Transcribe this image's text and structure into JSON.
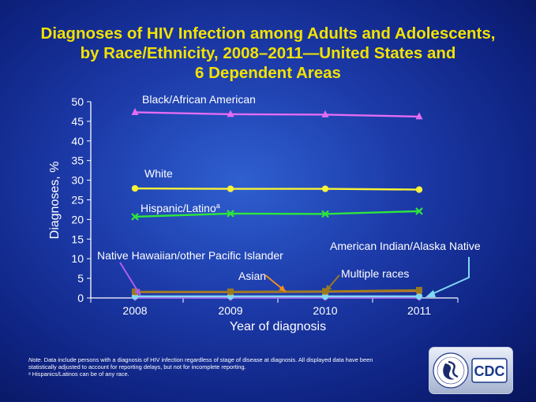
{
  "title_lines": [
    "Diagnoses of HIV Infection among Adults and Adolescents,",
    "by Race/Ethnicity, 2008–2011—United States and",
    "6 Dependent Areas"
  ],
  "chart_data": {
    "type": "line",
    "x": [
      2008,
      2009,
      2010,
      2011
    ],
    "xlabel": "Year of diagnosis",
    "ylabel": "Diagnoses, %",
    "ylim": [
      0,
      50
    ],
    "yticks": [
      0,
      5,
      10,
      15,
      20,
      25,
      30,
      35,
      40,
      45,
      50
    ],
    "grid": false,
    "series": [
      {
        "name": "Black/African American",
        "values": [
          47.3,
          46.8,
          46.7,
          46.2
        ],
        "color": "#e36cf2",
        "marker": "triangle"
      },
      {
        "name": "White",
        "values": [
          27.9,
          27.8,
          27.8,
          27.6
        ],
        "color": "#f7f336",
        "marker": "circle"
      },
      {
        "name": "Hispanic/Latino",
        "name_superscript": "a",
        "values": [
          20.7,
          21.5,
          21.4,
          22.1
        ],
        "color": "#2ee63c",
        "marker": "x"
      },
      {
        "name": "Multiple races",
        "values": [
          1.6,
          1.6,
          1.7,
          2.0
        ],
        "color": "#9a7a20",
        "marker": "square"
      },
      {
        "name": "Asian",
        "values": [
          1.5,
          1.5,
          1.6,
          1.8
        ],
        "color": "#f28c1e",
        "marker": "circle"
      },
      {
        "name": "American Indian/Alaska Native",
        "values": [
          0.4,
          0.4,
          0.4,
          0.4
        ],
        "color": "#7fd9f2",
        "marker": "circle"
      },
      {
        "name": "Native Hawaiian/other Pacific Islander",
        "values": [
          0.1,
          0.1,
          0.1,
          0.1
        ],
        "color": "#b05ef0",
        "marker": "diamond"
      }
    ]
  },
  "footnotes": {
    "note_label": "Note.",
    "note_text": " Data include persons with a diagnosis of HIV infection regardless of stage of disease at diagnosis. All displayed data have been statistically adjusted to account for reporting delays, but not for incomplete reporting.",
    "superscript_note": "ᵃ Hispanics/Latinos can be of any race."
  },
  "logo": {
    "text": "CDC",
    "color": "#1a3a8a"
  }
}
